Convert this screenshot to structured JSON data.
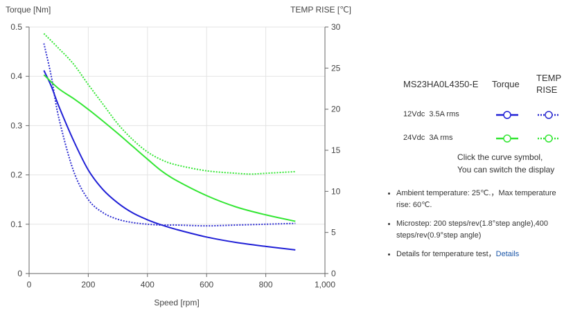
{
  "chart_data": {
    "type": "line",
    "title": "",
    "xlabel": "Speed [rpm]",
    "ylabel_left": "Torque  [Nm]",
    "ylabel_right": "TEMP RISE [℃]",
    "xlim": [
      0,
      1000
    ],
    "ylim_left": [
      0,
      0.5
    ],
    "ylim_right": [
      0,
      30
    ],
    "x_ticks": [
      "0",
      "200",
      "400",
      "600",
      "800",
      "1,000"
    ],
    "y_left_ticks": [
      "0",
      "0.1",
      "0.2",
      "0.3",
      "0.4",
      "0.5"
    ],
    "y_right_ticks": [
      "0",
      "5",
      "10",
      "15",
      "20",
      "25",
      "30"
    ],
    "grid": true,
    "legend": "right",
    "series": [
      {
        "key": "torque_12",
        "axis": "left",
        "style": "solid",
        "color": "#1f1fd6",
        "x": [
          50,
          75,
          100,
          150,
          200,
          250,
          300,
          350,
          400,
          450,
          500,
          600,
          700,
          800,
          900
        ],
        "y": [
          0.412,
          0.38,
          0.34,
          0.27,
          0.21,
          0.17,
          0.143,
          0.123,
          0.109,
          0.098,
          0.089,
          0.074,
          0.063,
          0.055,
          0.048
        ]
      },
      {
        "key": "temp_12",
        "axis": "right",
        "style": "dotted",
        "color": "#2b2bd0",
        "x": [
          50,
          75,
          100,
          150,
          200,
          250,
          300,
          350,
          400,
          450,
          500,
          600,
          700,
          800,
          900
        ],
        "y": [
          28,
          24,
          19,
          12.5,
          9,
          7.4,
          6.6,
          6.2,
          6.0,
          5.9,
          5.9,
          5.8,
          5.9,
          6.0,
          6.1
        ]
      },
      {
        "key": "torque_24",
        "axis": "left",
        "style": "solid",
        "color": "#33e633",
        "x": [
          50,
          100,
          150,
          200,
          250,
          300,
          350,
          400,
          450,
          500,
          600,
          700,
          800,
          900
        ],
        "y": [
          0.403,
          0.375,
          0.355,
          0.333,
          0.309,
          0.284,
          0.258,
          0.232,
          0.207,
          0.188,
          0.158,
          0.135,
          0.119,
          0.106
        ]
      },
      {
        "key": "temp_24",
        "axis": "right",
        "style": "dotted",
        "color": "#33e633",
        "x": [
          50,
          100,
          150,
          200,
          250,
          300,
          350,
          400,
          450,
          500,
          600,
          700,
          750,
          800,
          900
        ],
        "y": [
          29.2,
          27.4,
          25.5,
          23,
          20.6,
          18.2,
          16.3,
          14.8,
          13.8,
          13.2,
          12.5,
          12.2,
          12.1,
          12.2,
          12.4
        ]
      }
    ]
  },
  "legend": {
    "model": "MS23HA0L4350-E",
    "col_torque": "Torque",
    "col_temp_line1": "TEMP",
    "col_temp_line2": "RISE",
    "rows": [
      {
        "voltage": "12Vdc",
        "current": "3.5A rms",
        "color": "#1f1fd6"
      },
      {
        "voltage": "24Vdc",
        "current": "3A rms",
        "color": "#33e633"
      }
    ],
    "note_line1": "Click the curve symbol,",
    "note_line2": "You can switch the display"
  },
  "bullets": {
    "ambient": "Ambient temperature: 25℃.，Max temperature rise: 60℃.",
    "microstep": "Microstep: 200 steps/rev(1.8°step angle),400 steps/rev(0.9°step angle)",
    "details_text": "Details for temperature test，",
    "details_link": "Details"
  }
}
